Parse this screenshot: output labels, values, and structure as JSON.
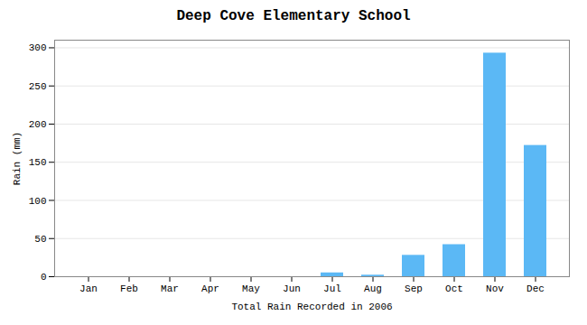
{
  "chart_data": {
    "type": "bar",
    "title": "Deep Cove Elementary School",
    "xlabel": "Total Rain Recorded in 2006",
    "ylabel": "Rain (mm)",
    "categories": [
      "Jan",
      "Feb",
      "Mar",
      "Apr",
      "May",
      "Jun",
      "Jul",
      "Aug",
      "Sep",
      "Oct",
      "Nov",
      "Dec"
    ],
    "values": [
      0,
      0,
      0,
      0,
      0,
      0,
      5,
      2,
      28,
      42,
      293,
      172
    ],
    "color": "#5BB8F5",
    "ylim": [
      0,
      310
    ],
    "yticks": [
      0,
      50,
      100,
      150,
      200,
      250,
      300
    ],
    "grid": true
  }
}
